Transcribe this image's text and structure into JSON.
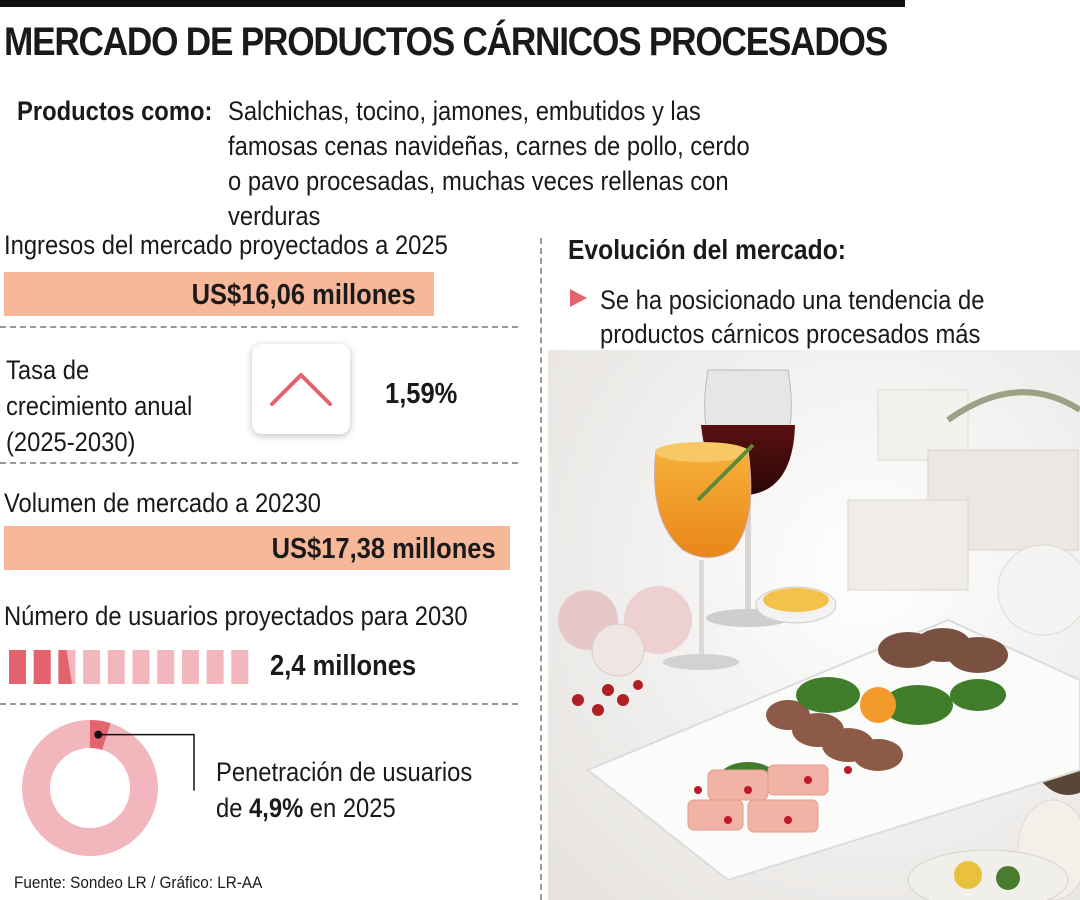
{
  "title": "MERCADO DE PRODUCTOS CÁRNICOS PROCESADOS",
  "products": {
    "label": "Productos como:",
    "text": "Salchichas, tocino, jamones, embutidos y las famosas cenas navideñas, carnes de pollo, cerdo o pavo procesadas, muchas veces rellenas con verduras"
  },
  "colors": {
    "bar": "#f7b89a",
    "accent": "#e3646f",
    "light_pink": "#f2b6bd",
    "ring": "#f2b6bd"
  },
  "chart_data": [
    {
      "type": "bar",
      "title": "Ingresos del mercado proyectados a 2025",
      "value_label": "US$16,06 millones",
      "values": [
        16.06
      ]
    },
    {
      "type": "table",
      "title": "Tasa de crecimiento anual (2025-2030)",
      "value_label": "1,59%",
      "values": [
        1.59
      ],
      "icon": "up-chevron-icon"
    },
    {
      "type": "bar",
      "title": "Volumen de mercado a 20230",
      "value_label": "US$17,38 millones",
      "values": [
        17.38
      ]
    },
    {
      "type": "bar",
      "title": "Número de usuarios proyectados para 2030",
      "value_label": "2,4 millones",
      "values": [
        2.4
      ],
      "pictogram_total": 10,
      "pictogram_filled": 2.4
    },
    {
      "type": "pie",
      "title_prefix": "Penetración de usuarios",
      "title_middle": "de ",
      "value_label": "4,9%",
      "title_suffix": " en 2025",
      "values": [
        4.9
      ]
    }
  ],
  "evolution": {
    "title": "Evolución del mercado:",
    "bullet": "Se ha posicionado una tendencia de productos cárnicos procesados más orgánicos y naturales"
  },
  "source": "Fuente: Sondeo LR / Gráfico: LR-AA"
}
